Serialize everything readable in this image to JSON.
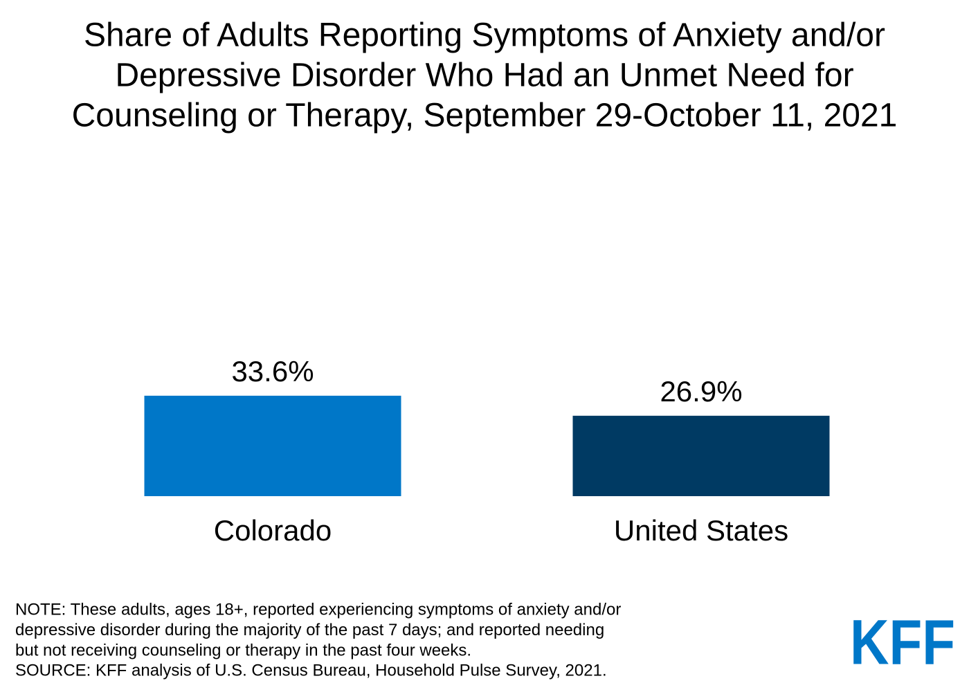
{
  "chart_data": {
    "type": "bar",
    "title": [
      "Share of Adults Reporting Symptoms of Anxiety and/or",
      "Depressive Disorder Who Had an Unmet Need for",
      "Counseling or Therapy, September 29-October 11, 2021"
    ],
    "categories": [
      "Colorado",
      "United States"
    ],
    "values": [
      33.6,
      26.9
    ],
    "value_labels": [
      "33.6%",
      "26.9%"
    ],
    "colors": [
      "#0077c8",
      "#003a63"
    ],
    "note": [
      "NOTE: These adults, ages 18+, reported experiencing symptoms of anxiety and/or",
      "depressive disorder during the majority of the past 7 days; and reported needing",
      "but not receiving counseling or therapy in the past four weeks."
    ],
    "source": "SOURCE: KFF analysis of U.S. Census Bureau, Household Pulse Survey, 2021.",
    "logo": "KFF"
  }
}
